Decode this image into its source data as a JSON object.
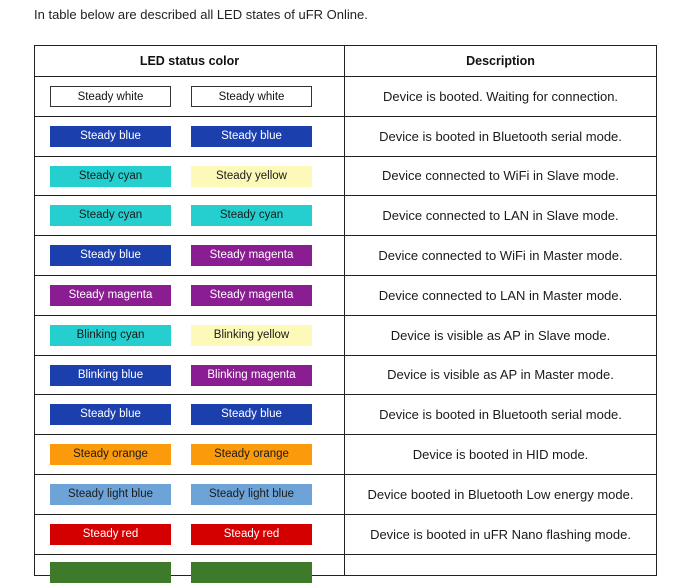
{
  "intro": "In table below are described all LED states of uFR Online.",
  "table": {
    "headers": [
      "LED status color",
      "Description"
    ],
    "rows": [
      {
        "a": {
          "label": "Steady white",
          "bg": "#ffffff",
          "fg": "#111111",
          "border": "#333333"
        },
        "b": {
          "label": "Steady white",
          "bg": "#ffffff",
          "fg": "#111111",
          "border": "#333333"
        },
        "desc": "Device is booted. Waiting for connection."
      },
      {
        "a": {
          "label": "Steady blue",
          "bg": "#1c3fae",
          "fg": "#ffffff"
        },
        "b": {
          "label": "Steady blue",
          "bg": "#1c3fae",
          "fg": "#ffffff"
        },
        "desc": "Device is booted in Bluetooth serial mode."
      },
      {
        "a": {
          "label": "Steady cyan",
          "bg": "#26cfcf",
          "fg": "#1a1a1a"
        },
        "b": {
          "label": "Steady yellow",
          "bg": "#fdf9b8",
          "fg": "#1a1a1a"
        },
        "desc": "Device connected to WiFi in Slave mode."
      },
      {
        "a": {
          "label": "Steady cyan",
          "bg": "#26cfcf",
          "fg": "#1a1a1a"
        },
        "b": {
          "label": "Steady cyan",
          "bg": "#26cfcf",
          "fg": "#1a1a1a"
        },
        "desc": "Device connected to LAN in Slave mode."
      },
      {
        "a": {
          "label": "Steady blue",
          "bg": "#1c3fae",
          "fg": "#ffffff"
        },
        "b": {
          "label": "Steady magenta",
          "bg": "#8b1d92",
          "fg": "#ffffff"
        },
        "desc": "Device connected to WiFi in Master mode."
      },
      {
        "a": {
          "label": "Steady magenta",
          "bg": "#8b1d92",
          "fg": "#ffffff"
        },
        "b": {
          "label": "Steady magenta",
          "bg": "#8b1d92",
          "fg": "#ffffff"
        },
        "desc": "Device connected to LAN in Master mode."
      },
      {
        "a": {
          "label": "Blinking cyan",
          "bg": "#26cfcf",
          "fg": "#1a1a1a"
        },
        "b": {
          "label": "Blinking yellow",
          "bg": "#fdf9b8",
          "fg": "#1a1a1a"
        },
        "desc": "Device is visible as AP in Slave mode."
      },
      {
        "a": {
          "label": "Blinking blue",
          "bg": "#1c3fae",
          "fg": "#ffffff"
        },
        "b": {
          "label": "Blinking magenta",
          "bg": "#8b1d92",
          "fg": "#ffffff"
        },
        "desc": "Device is visible as AP in Master mode."
      },
      {
        "a": {
          "label": "Steady blue",
          "bg": "#1c3fae",
          "fg": "#ffffff"
        },
        "b": {
          "label": "Steady blue",
          "bg": "#1c3fae",
          "fg": "#ffffff"
        },
        "desc": "Device is booted in Bluetooth serial mode."
      },
      {
        "a": {
          "label": "Steady orange",
          "bg": "#fb9a0a",
          "fg": "#1a1a1a"
        },
        "b": {
          "label": "Steady orange",
          "bg": "#fb9a0a",
          "fg": "#1a1a1a"
        },
        "desc": "Device is booted in HID mode."
      },
      {
        "a": {
          "label": "Steady light blue",
          "bg": "#6ea3d8",
          "fg": "#1a1a1a"
        },
        "b": {
          "label": "Steady light blue",
          "bg": "#6ea3d8",
          "fg": "#1a1a1a"
        },
        "desc": "Device booted in Bluetooth Low energy mode."
      },
      {
        "a": {
          "label": "Steady red",
          "bg": "#d40000",
          "fg": "#ffffff"
        },
        "b": {
          "label": "Steady red",
          "bg": "#d40000",
          "fg": "#ffffff"
        },
        "desc": "Device is booted in uFR Nano flashing mode."
      }
    ],
    "partial_row": {
      "a_bg": "#3d7a2a",
      "b_bg": "#3d7a2a"
    }
  }
}
